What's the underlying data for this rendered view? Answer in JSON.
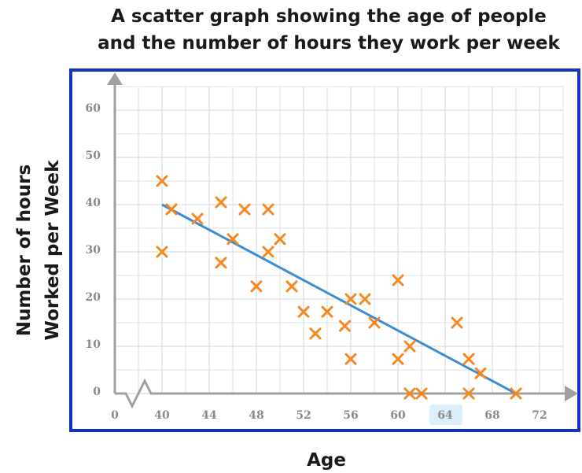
{
  "chart_data": {
    "type": "scatter",
    "title": [
      "A scatter graph showing the age of people",
      "and the number of hours they work per week"
    ],
    "x_label": "Age",
    "y_label": [
      "Number of hours",
      "Worked per Week"
    ],
    "x_origin_label": "0",
    "xlim": [
      36,
      74
    ],
    "ylim": [
      0,
      65
    ],
    "xticks": [
      40,
      44,
      48,
      52,
      56,
      60,
      64,
      68,
      72
    ],
    "yticks": [
      0,
      10,
      20,
      30,
      40,
      50,
      60
    ],
    "grid": true,
    "series": [
      {
        "color": "#f7871f",
        "x": [
          40,
          40,
          40.8,
          43,
          45,
          45,
          46,
          47,
          48,
          49,
          49,
          50,
          51,
          52,
          53,
          54,
          55.5,
          56,
          56,
          57.2,
          58,
          60,
          60,
          61,
          61,
          62,
          65,
          66,
          66,
          67,
          70
        ],
        "values": [
          45,
          30,
          39,
          37,
          40.5,
          27.7,
          32.7,
          39,
          22.7,
          39,
          30,
          32.7,
          22.7,
          17.3,
          12.7,
          17.3,
          14.3,
          20,
          7.3,
          20,
          15,
          24,
          7.3,
          10,
          0,
          0,
          15,
          7.3,
          0,
          4.3,
          0
        ]
      }
    ],
    "trend_line": {
      "color": "#3c8dd6",
      "x": [
        40,
        70
      ],
      "values": [
        40,
        0
      ]
    }
  }
}
